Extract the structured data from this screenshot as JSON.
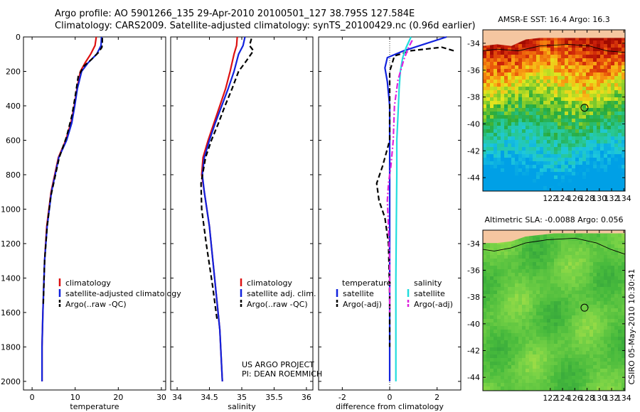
{
  "header": {
    "line1": "Argo profile: AO 5901266_135 29-Apr-2010 20100501_127 38.795S 127.584E",
    "line2": "Climatology: CARS2009. Satellite-adjusted climatology: synTS_20100429.nc (0.96d earlier)"
  },
  "colors": {
    "red": "#dd1111",
    "blue": "#1122dd",
    "black": "#000000",
    "cyan": "#22dddd",
    "magenta": "#dd22dd",
    "land": "#f5c6a0"
  },
  "chart_data": [
    {
      "type": "line",
      "xlabel": "temperature",
      "ylabel": "",
      "xlim": [
        -2,
        31
      ],
      "ylim": [
        2050,
        0
      ],
      "xticks": [
        "0",
        "10",
        "20",
        "30"
      ],
      "yticks": [
        "0",
        "200",
        "400",
        "600",
        "800",
        "1000",
        "1200",
        "1400",
        "1600",
        "1800",
        "2000"
      ],
      "legend": [
        "climatology",
        "satellite-adjusted climatology",
        "Argo(..raw -QC)"
      ],
      "series": [
        {
          "name": "climatology",
          "color": "red",
          "dash": "solid",
          "x": [
            14.9,
            14.6,
            13.6,
            12.3,
            11.2,
            10.4,
            9.8,
            9.0,
            7.8,
            6.1,
            4.4,
            3.4,
            2.9,
            2.5,
            2.3,
            2.3
          ],
          "y": [
            0,
            50,
            100,
            150,
            200,
            300,
            400,
            500,
            600,
            700,
            900,
            1100,
            1300,
            1600,
            1800,
            2000
          ]
        },
        {
          "name": "satellite-adjusted climatology",
          "color": "blue",
          "dash": "solid",
          "x": [
            16.1,
            16.0,
            15.0,
            13.0,
            11.5,
            10.5,
            9.9,
            9.2,
            8.0,
            6.2,
            4.5,
            3.5,
            2.9,
            2.5,
            2.3,
            2.3
          ],
          "y": [
            0,
            50,
            100,
            150,
            200,
            300,
            400,
            500,
            600,
            700,
            900,
            1100,
            1300,
            1600,
            1800,
            2000
          ]
        },
        {
          "name": "Argo(..raw -QC)",
          "color": "black",
          "dash": "dash",
          "x": [
            16.3,
            16.3,
            16.2,
            15.4,
            13.8,
            12.0,
            10.7,
            10.1,
            9.3,
            8.0,
            6.3,
            4.3,
            3.5,
            2.9,
            2.6
          ],
          "y": [
            5,
            30,
            60,
            90,
            130,
            170,
            230,
            330,
            450,
            580,
            700,
            930,
            1100,
            1300,
            1550
          ]
        }
      ]
    },
    {
      "type": "line",
      "xlabel": "salinity",
      "ylabel": "",
      "xlim": [
        33.9,
        36.1
      ],
      "ylim": [
        2050,
        0
      ],
      "xticks": [
        "34",
        "34.5",
        "35",
        "35.5",
        "36"
      ],
      "legend": [
        "climatology",
        "satellite adj. clim.",
        "Argo(..raw -QC)"
      ],
      "annotations": [
        "US ARGO PROJECT",
        "PI: DEAN ROEMMICH"
      ],
      "series": [
        {
          "name": "climatology",
          "color": "red",
          "dash": "solid",
          "x": [
            34.93,
            34.92,
            34.88,
            34.82,
            34.75,
            34.66,
            34.57,
            34.48,
            34.4,
            34.38,
            34.42,
            34.5,
            34.58,
            34.66,
            34.7
          ],
          "y": [
            0,
            50,
            100,
            200,
            300,
            400,
            500,
            600,
            700,
            800,
            900,
            1100,
            1400,
            1700,
            2000
          ]
        },
        {
          "name": "satellite adj. clim.",
          "color": "blue",
          "dash": "solid",
          "x": [
            35.05,
            35.02,
            34.95,
            34.88,
            34.79,
            34.69,
            34.59,
            34.5,
            34.42,
            34.39,
            34.42,
            34.5,
            34.58,
            34.66,
            34.7
          ],
          "y": [
            0,
            50,
            100,
            200,
            300,
            400,
            500,
            600,
            700,
            800,
            900,
            1100,
            1400,
            1700,
            2000
          ]
        },
        {
          "name": "Argo(..raw -QC)",
          "color": "black",
          "dash": "dash",
          "x": [
            35.15,
            35.12,
            35.18,
            35.05,
            34.95,
            34.85,
            34.74,
            34.64,
            34.53,
            34.44,
            34.37,
            34.38,
            34.45,
            34.55,
            34.62
          ],
          "y": [
            10,
            50,
            80,
            150,
            200,
            300,
            400,
            500,
            600,
            700,
            850,
            1000,
            1200,
            1450,
            1650
          ]
        }
      ]
    },
    {
      "type": "line",
      "xlabel": "difference from climatology",
      "ylabel": "",
      "xlim": [
        -3,
        3
      ],
      "ylim": [
        2050,
        0
      ],
      "xticks": [
        "-2",
        "0",
        "2"
      ],
      "legend": [
        "temperature",
        "satellite",
        "Argo(-adj)",
        "salinity",
        "satellite",
        "Argo(-adj)"
      ],
      "series": [
        {
          "name": "satellite",
          "group": "temperature",
          "color": "blue",
          "dash": "solid",
          "x": [
            2.4,
            1.5,
            0.6,
            -0.1,
            -0.2,
            -0.1,
            0.0,
            0.0,
            0.0,
            0.0,
            0.0,
            0.0,
            0.0
          ],
          "y": [
            0,
            40,
            80,
            120,
            180,
            260,
            400,
            600,
            900,
            1200,
            1500,
            1800,
            2000
          ]
        },
        {
          "name": "Argo(-adj)",
          "group": "temperature",
          "color": "black",
          "dash": "dash",
          "x": [
            2.7,
            2.2,
            0.9,
            0.2,
            0.0,
            0.0,
            -0.3,
            -0.55,
            -0.45,
            -0.2,
            -0.05,
            0.0,
            0.0
          ],
          "y": [
            80,
            60,
            80,
            110,
            200,
            600,
            750,
            850,
            950,
            1050,
            1200,
            1500,
            1800
          ]
        },
        {
          "name": "satellite",
          "group": "salinity",
          "color": "cyan",
          "dash": "solid",
          "x": [
            0.9,
            0.7,
            0.55,
            0.45,
            0.4,
            0.35,
            0.3,
            0.3,
            0.28,
            0.26,
            0.26,
            0.26
          ],
          "y": [
            0,
            60,
            120,
            200,
            300,
            450,
            600,
            800,
            1100,
            1400,
            1700,
            2000
          ]
        },
        {
          "name": "Argo(-adj)",
          "group": "salinity",
          "color": "magenta",
          "dash": "dashdot",
          "x": [
            0.95,
            0.8,
            0.6,
            0.35,
            0.2,
            0.15,
            0.05,
            -0.05,
            -0.1,
            -0.05,
            0.0,
            0.0
          ],
          "y": [
            20,
            60,
            130,
            250,
            400,
            600,
            750,
            850,
            950,
            1100,
            1300,
            1600
          ]
        }
      ]
    },
    {
      "type": "heatmap",
      "title": "AMSR-E SST: 16.4 Argo: 16.3",
      "xlim": [
        111,
        134.2
      ],
      "ylim": [
        -45,
        -33
      ],
      "xticks": [
        "122",
        "124",
        "126",
        "128",
        "130",
        "132",
        "134"
      ],
      "yticks": [
        "-34",
        "-36",
        "-38",
        "-40",
        "-42",
        "-44"
      ],
      "marker": {
        "lon": 127.584,
        "lat": -38.795
      }
    },
    {
      "type": "heatmap",
      "title": "Altimetric SLA: -0.0088 Argo: 0.056",
      "xlim": [
        111,
        134.2
      ],
      "ylim": [
        -45,
        -33
      ],
      "xticks": [
        "122",
        "124",
        "126",
        "128",
        "130",
        "132",
        "134"
      ],
      "yticks": [
        "-34",
        "-36",
        "-38",
        "-40",
        "-42",
        "-44"
      ],
      "side_label": "CSIRO 05-May-2010 10:30:41",
      "marker": {
        "lon": 127.584,
        "lat": -38.795
      }
    }
  ]
}
